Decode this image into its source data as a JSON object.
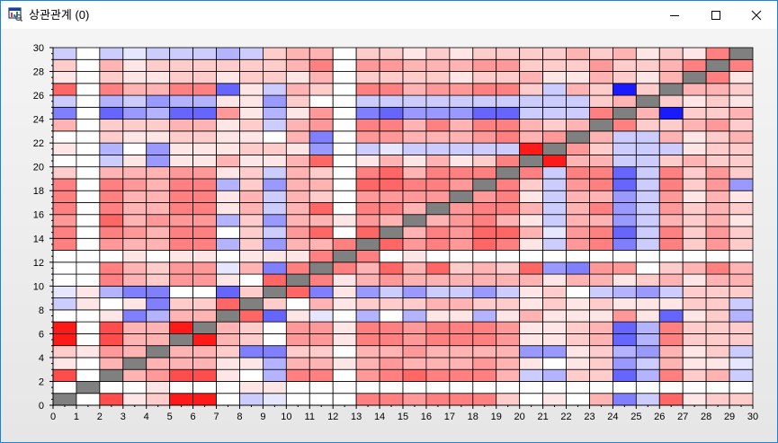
{
  "window": {
    "title": "상관관계 (0)",
    "icons": {
      "app": "chart-app-icon",
      "minimize": "minimize-icon",
      "maximize": "maximize-icon",
      "close": "close-icon"
    }
  },
  "colors": {
    "negative_max": "#0000ff",
    "neutral": "#ffffff",
    "positive_max": "#ff0000",
    "diagonal": "#808080",
    "cell_border": "#000000",
    "title_bar": "#ffffff",
    "window_border": "#1883d7"
  },
  "chart_data": {
    "type": "heatmap",
    "title": "",
    "xlabel": "",
    "ylabel": "",
    "xlim": [
      0,
      30
    ],
    "ylim": [
      0,
      30
    ],
    "x_ticks": [
      "0",
      "1",
      "2",
      "3",
      "4",
      "5",
      "6",
      "7",
      "8",
      "9",
      "10",
      "11",
      "12",
      "13",
      "14",
      "15",
      "16",
      "17",
      "18",
      "19",
      "20",
      "21",
      "22",
      "23",
      "24",
      "25",
      "26",
      "27",
      "28",
      "29",
      "30"
    ],
    "y_ticks": [
      "0",
      "2",
      "4",
      "6",
      "8",
      "10",
      "12",
      "14",
      "16",
      "18",
      "20",
      "22",
      "24",
      "26",
      "28",
      "30"
    ],
    "value_range": [
      -1,
      1
    ],
    "color_scale": "blue (-1) → white (0) → red (+1); diagonal gray",
    "grid": true,
    "legend": "none",
    "cells_note": "rows listed bottom (y=0) to top (y=29), columns x=0..29; null = diagonal",
    "cells": [
      [
        null,
        0,
        0.7,
        0.1,
        0.2,
        0.9,
        0.9,
        0,
        -0.2,
        -0.1,
        0,
        0,
        0,
        0.5,
        0.5,
        0.4,
        0.5,
        0.5,
        0.5,
        0.2,
        0,
        0.1,
        0,
        0.3,
        -0.5,
        -0.2,
        0.6,
        0.1,
        0.2,
        0.2
      ],
      [
        0,
        null,
        0,
        0,
        0.1,
        0,
        0,
        0,
        0.1,
        0.1,
        0,
        0,
        0,
        0,
        0,
        0,
        0,
        0,
        0,
        0,
        0,
        0,
        0,
        0,
        0,
        0,
        0,
        0,
        0,
        0
      ],
      [
        0.7,
        0,
        null,
        0.3,
        0.4,
        0.7,
        0.7,
        0.1,
        0,
        -0.3,
        0.5,
        0.5,
        0,
        0.4,
        0.5,
        0.6,
        0.5,
        0.5,
        0.5,
        0.3,
        -0.2,
        -0.3,
        0.2,
        0.2,
        -0.6,
        -0.3,
        0.5,
        0.2,
        0.3,
        -0.2
      ],
      [
        0.1,
        0,
        0.3,
        null,
        0.3,
        0.3,
        0.3,
        0.1,
        0.1,
        -0.3,
        0.3,
        0.3,
        0.1,
        0.3,
        0.4,
        0.3,
        0.3,
        0.3,
        0.4,
        0.3,
        0.1,
        0,
        0.1,
        0.2,
        -0.4,
        -0.2,
        0.3,
        0.1,
        0.1,
        -0.1
      ],
      [
        0.2,
        0.1,
        0.4,
        0.3,
        null,
        0.3,
        0.3,
        0.2,
        -0.5,
        -0.5,
        0.2,
        0.2,
        0,
        0.3,
        0.3,
        0.4,
        0.3,
        0.3,
        0.3,
        0.3,
        -0.4,
        -0.4,
        0.1,
        0.2,
        -0.3,
        -0.4,
        0.3,
        0.1,
        0.2,
        -0.2
      ],
      [
        0.9,
        0,
        0.7,
        0.3,
        0.3,
        null,
        0.9,
        0.3,
        0.2,
        0,
        0.4,
        0.4,
        0.1,
        0.5,
        0.5,
        0.4,
        0.5,
        0.5,
        0.5,
        0.4,
        0.1,
        0.1,
        0.2,
        0.3,
        -0.6,
        -0.3,
        0.5,
        0.2,
        0.2,
        0.2
      ],
      [
        0.9,
        0,
        0.7,
        0.3,
        0.3,
        0.9,
        null,
        0.3,
        0.2,
        0,
        0.4,
        0.4,
        0.1,
        0.5,
        0.5,
        0.4,
        0.5,
        0.5,
        0.5,
        0.4,
        0.1,
        0.1,
        0.2,
        0.3,
        -0.6,
        -0.3,
        0.5,
        0.2,
        0.2,
        0.2
      ],
      [
        0,
        0,
        0.1,
        -0.5,
        -0.3,
        0.3,
        0.3,
        null,
        0.6,
        -0.6,
        0.1,
        -0.1,
        0,
        -0.3,
        0,
        -0.3,
        0.1,
        0.1,
        -0.3,
        0.1,
        0.3,
        0.1,
        0.1,
        0.1,
        0.4,
        0.1,
        -0.6,
        0.1,
        0.2,
        -0.3
      ],
      [
        -0.2,
        0.1,
        0,
        0.1,
        -0.5,
        0.2,
        0.2,
        0.6,
        null,
        0.2,
        0,
        0.3,
        0.1,
        0.2,
        0.2,
        0.2,
        0.3,
        0.3,
        0.2,
        0.2,
        0.1,
        0.2,
        0.1,
        0.2,
        0.1,
        0.1,
        0.1,
        0.2,
        0.2,
        -0.2
      ],
      [
        -0.1,
        0.1,
        -0.3,
        -0.5,
        -0.5,
        0,
        0,
        -0.6,
        0.2,
        null,
        0.6,
        -0.5,
        0.1,
        -0.4,
        -0.2,
        -0.4,
        -0.2,
        -0.2,
        -0.4,
        -0.2,
        0.1,
        0.2,
        0,
        -0.2,
        -0.3,
        -0.4,
        -0.2,
        0.2,
        0.2,
        0.2
      ],
      [
        0,
        0,
        0.5,
        0.3,
        0.2,
        0.4,
        0.4,
        0.1,
        0,
        0.6,
        null,
        0.5,
        0.1,
        0.3,
        0.4,
        0.3,
        0.3,
        0.3,
        0.3,
        0.3,
        0.3,
        0.1,
        0.3,
        0.3,
        0.1,
        0.2,
        0.3,
        0.1,
        0.3,
        0.3
      ],
      [
        0,
        0,
        0.5,
        0.3,
        0.2,
        0.4,
        0.4,
        -0.1,
        0.3,
        -0.5,
        0.5,
        null,
        0.5,
        0.3,
        0.6,
        0.3,
        0.6,
        0.2,
        0.3,
        0.2,
        0.6,
        -0.4,
        -0.5,
        0.4,
        0.4,
        0,
        0.2,
        0.3,
        0.5,
        0.3
      ],
      [
        0,
        0,
        0,
        0.1,
        0,
        0.1,
        0.1,
        0,
        0.1,
        0.1,
        0.1,
        0.5,
        null,
        0.5,
        0,
        0.1,
        0,
        0,
        0,
        0,
        0,
        0,
        0,
        0,
        0,
        0,
        0,
        0,
        0,
        0
      ],
      [
        0.5,
        0,
        0.4,
        0.3,
        0.3,
        0.5,
        0.5,
        -0.3,
        0.2,
        -0.4,
        0.3,
        0.3,
        0.5,
        null,
        0.6,
        0.4,
        0.5,
        0.4,
        0.6,
        0.5,
        0.1,
        -0.2,
        0.4,
        0.5,
        -0.5,
        -0.2,
        0.5,
        0.2,
        0.4,
        0.2
      ],
      [
        0.5,
        0,
        0.5,
        0.4,
        0.3,
        0.5,
        0.5,
        0,
        0.2,
        -0.2,
        0.4,
        0.6,
        0,
        0.6,
        null,
        0.3,
        0.5,
        0.4,
        0.6,
        0.6,
        0.3,
        -0.1,
        0.4,
        0.5,
        -0.6,
        -0.2,
        0.5,
        0.2,
        0.4,
        0.2
      ],
      [
        0.4,
        0,
        0.6,
        0.3,
        0.4,
        0.4,
        0.4,
        -0.3,
        0.2,
        -0.4,
        0.3,
        0.3,
        0.1,
        0.4,
        0.3,
        null,
        0.3,
        0.4,
        0.5,
        0.3,
        0.1,
        -0.2,
        0.3,
        0.3,
        -0.4,
        -0.2,
        0.3,
        0.2,
        0.3,
        0.1
      ],
      [
        0.5,
        0,
        0.5,
        0.3,
        0.3,
        0.5,
        0.5,
        0.1,
        0.3,
        -0.2,
        0.3,
        0.6,
        0,
        0.5,
        0.5,
        0.3,
        null,
        0.4,
        0.5,
        0.5,
        0.3,
        -0.2,
        0.3,
        0.5,
        -0.4,
        -0.2,
        0.4,
        0.2,
        0.3,
        0.2
      ],
      [
        0.5,
        0,
        0.5,
        0.3,
        0.3,
        0.5,
        0.5,
        0.1,
        0.3,
        -0.2,
        0.3,
        0.2,
        0,
        0.4,
        0.4,
        0.4,
        0.4,
        null,
        0.4,
        0.5,
        0.1,
        -0.2,
        0.3,
        0.3,
        -0.4,
        -0.2,
        0.4,
        0.1,
        0.3,
        0.1
      ],
      [
        0.5,
        0,
        0.5,
        0.4,
        0.3,
        0.5,
        0.5,
        -0.3,
        0.2,
        -0.4,
        0.3,
        0.3,
        0,
        0.6,
        0.6,
        0.5,
        0.5,
        0.4,
        null,
        0.5,
        0.2,
        -0.2,
        0.4,
        0.5,
        -0.6,
        -0.2,
        0.5,
        0.2,
        0.4,
        -0.4
      ],
      [
        0.2,
        0,
        0.3,
        0.3,
        0.3,
        0.4,
        0.4,
        0.1,
        0.2,
        -0.2,
        0.3,
        0.2,
        0,
        0.5,
        0.6,
        0.3,
        0.5,
        0.5,
        0.5,
        null,
        0.5,
        -0.2,
        0.5,
        0.5,
        -0.6,
        -0.2,
        0.5,
        0.2,
        0.4,
        0.2
      ],
      [
        0,
        0,
        -0.2,
        0.1,
        -0.4,
        0.1,
        0.1,
        0.3,
        0.1,
        0.1,
        0.3,
        0.6,
        0,
        0.1,
        0.3,
        0.1,
        0.3,
        0.1,
        0.2,
        0.5,
        null,
        0.9,
        0.3,
        0.3,
        -0.2,
        -0.2,
        0.2,
        0.3,
        0.2,
        0.2
      ],
      [
        0.1,
        0,
        -0.3,
        0,
        -0.4,
        0.1,
        0.1,
        0.1,
        0.2,
        0.2,
        0.1,
        -0.4,
        0,
        -0.2,
        -0.1,
        -0.2,
        -0.2,
        -0.2,
        -0.2,
        -0.2,
        0.9,
        null,
        0.4,
        0.2,
        -0.2,
        -0.2,
        -0.2,
        0.1,
        0.2,
        0.2
      ],
      [
        0,
        0,
        0.2,
        0.1,
        0.1,
        0.2,
        0.2,
        0.1,
        0.1,
        0,
        0.3,
        -0.5,
        0,
        0.4,
        0.4,
        0.3,
        0.3,
        0.3,
        0.4,
        0.5,
        0.3,
        0.4,
        null,
        0.3,
        -0.2,
        -0.2,
        0.3,
        0.1,
        0.2,
        0.3
      ],
      [
        0.3,
        0,
        0.2,
        0.2,
        0.2,
        0.3,
        0.3,
        0.1,
        0.2,
        -0.2,
        0.3,
        0.4,
        0,
        0.5,
        0.5,
        0.3,
        0.5,
        0.3,
        0.5,
        0.5,
        0.3,
        0.2,
        0.3,
        null,
        0.5,
        0.2,
        0.2,
        0.3,
        0.4,
        0.2
      ],
      [
        -0.5,
        0,
        -0.6,
        -0.4,
        -0.3,
        -0.6,
        -0.6,
        0.4,
        0.1,
        -0.3,
        0.1,
        0.4,
        0,
        -0.5,
        -0.6,
        -0.4,
        -0.4,
        -0.4,
        -0.6,
        -0.6,
        -0.2,
        -0.2,
        -0.2,
        0.5,
        null,
        0.3,
        -0.9,
        0.2,
        0.2,
        0.3
      ],
      [
        -0.2,
        0,
        -0.3,
        -0.2,
        -0.4,
        -0.3,
        -0.3,
        0.1,
        0.1,
        -0.4,
        0.2,
        0,
        0,
        -0.2,
        -0.2,
        -0.2,
        -0.2,
        -0.2,
        -0.2,
        -0.2,
        -0.2,
        -0.2,
        -0.2,
        0.2,
        0.3,
        null,
        0.2,
        0.1,
        0.2,
        0.1
      ],
      [
        0.6,
        0,
        0.5,
        0.3,
        0.3,
        0.5,
        0.5,
        -0.6,
        0.1,
        -0.2,
        0.3,
        0.2,
        0,
        0.5,
        0.5,
        0.3,
        0.4,
        0.4,
        0.5,
        0.5,
        0.2,
        -0.2,
        0.3,
        0.2,
        -0.9,
        0.2,
        null,
        0.3,
        0.3,
        0.2
      ],
      [
        0.1,
        0,
        0.2,
        0.1,
        0.1,
        0.2,
        0.2,
        0.1,
        0.2,
        0.2,
        0.1,
        0.3,
        0,
        0.2,
        0.2,
        0.2,
        0.2,
        0.1,
        0.2,
        0.2,
        0.3,
        0.1,
        0.1,
        0.3,
        0.2,
        0.1,
        0.3,
        null,
        0.5,
        0.1
      ],
      [
        0.2,
        0,
        0.3,
        0.1,
        0.2,
        0.2,
        0.2,
        0.2,
        0.2,
        0.2,
        0.3,
        0.5,
        0,
        0.4,
        0.4,
        0.3,
        0.3,
        0.3,
        0.4,
        0.4,
        0.2,
        0.2,
        0.2,
        0.4,
        0.2,
        0.2,
        0.3,
        0.5,
        null,
        0.5
      ],
      [
        -0.2,
        0,
        -0.2,
        -0.1,
        -0.2,
        -0.2,
        -0.2,
        -0.3,
        -0.2,
        0.2,
        0.3,
        0.3,
        0,
        0.2,
        0.2,
        0.1,
        0.2,
        0.1,
        0.2,
        0.2,
        0.2,
        0.2,
        0.3,
        0.2,
        0.3,
        0.1,
        0.2,
        0.1,
        0.5,
        null
      ]
    ]
  }
}
